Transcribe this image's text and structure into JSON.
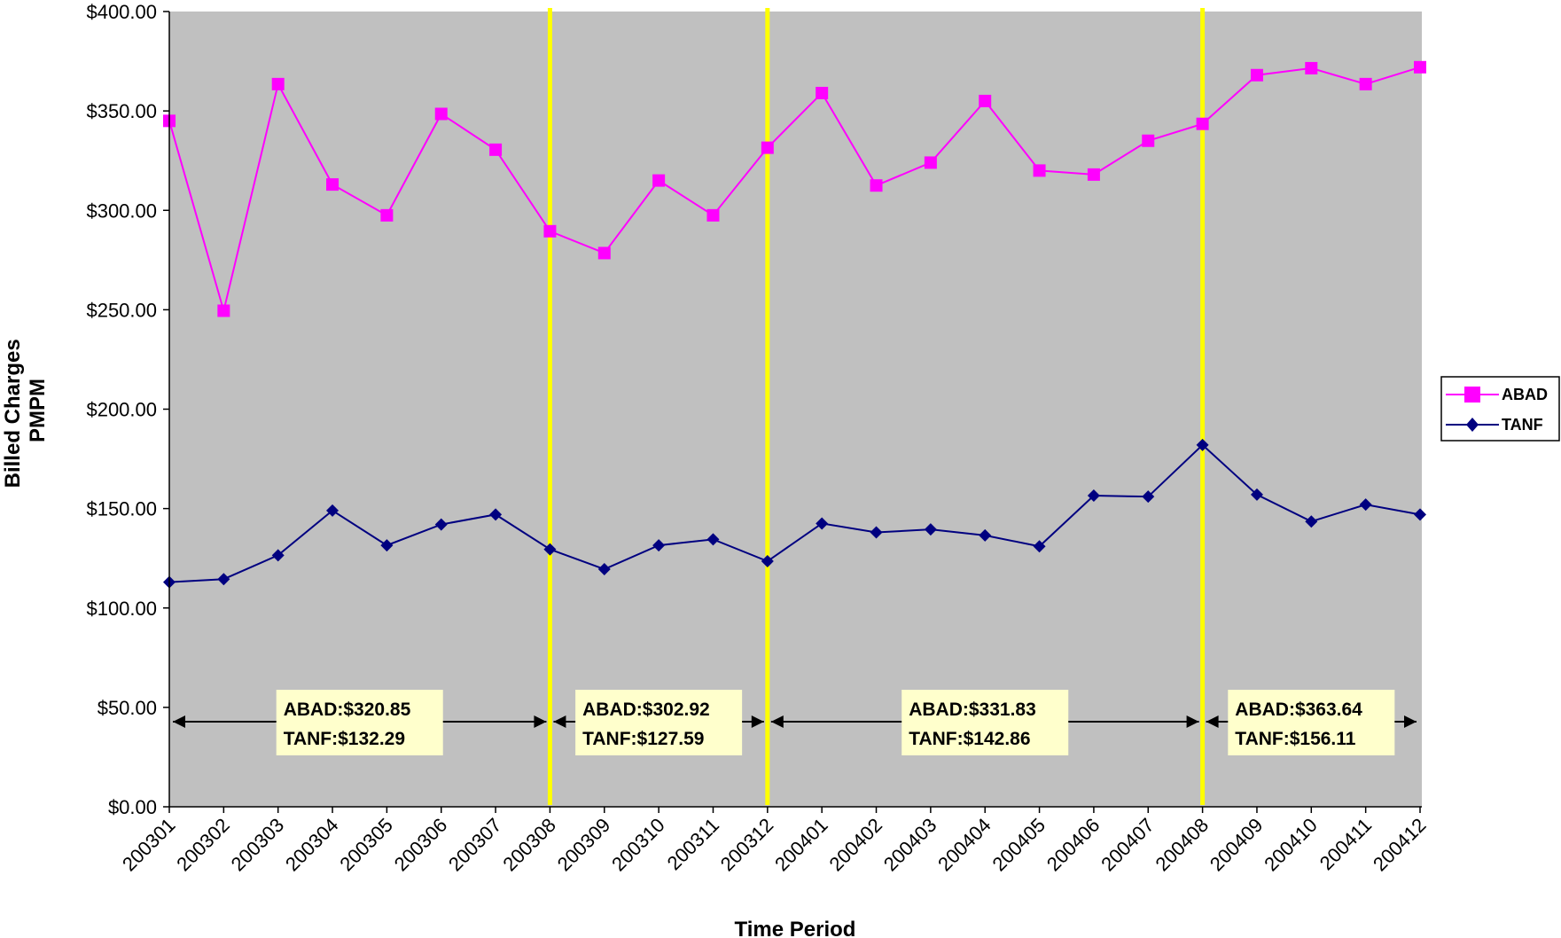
{
  "chart_data": {
    "type": "line",
    "title": "",
    "xlabel": "Time Period",
    "ylabel_lines": [
      "Billed Charges",
      "PMPM"
    ],
    "ylim": [
      0,
      400
    ],
    "y_ticks": [
      0,
      50,
      100,
      150,
      200,
      250,
      300,
      350,
      400
    ],
    "y_tick_labels": [
      "$0.00",
      "$50.00",
      "$100.00",
      "$150.00",
      "$200.00",
      "$250.00",
      "$300.00",
      "$350.00",
      "$400.00"
    ],
    "categories": [
      "200301",
      "200302",
      "200303",
      "200304",
      "200305",
      "200306",
      "200307",
      "200308",
      "200309",
      "200310",
      "200311",
      "200312",
      "200401",
      "200402",
      "200403",
      "200404",
      "200405",
      "200406",
      "200407",
      "200408",
      "200409",
      "200410",
      "200411",
      "200412"
    ],
    "series": [
      {
        "name": "ABAD",
        "color": "#FF00FF",
        "marker": "square",
        "values": [
          345,
          249.5,
          363.5,
          313,
          297.5,
          348.5,
          330.5,
          289.5,
          278.5,
          315,
          297.5,
          331.5,
          359,
          312.5,
          324,
          355,
          320,
          318,
          335,
          343.5,
          368,
          371.5,
          363.5,
          372
        ]
      },
      {
        "name": "TANF",
        "color": "#000080",
        "marker": "diamond",
        "values": [
          113,
          114.5,
          126.5,
          149,
          131.5,
          142,
          147,
          129.5,
          119.5,
          131.5,
          134.5,
          123.5,
          142.5,
          138,
          139.5,
          136.5,
          131,
          156.5,
          156,
          182,
          157,
          143.5,
          152,
          147
        ]
      }
    ],
    "grid": false,
    "legend_position": "right",
    "plot_background": "#C0C0C0",
    "divider_color": "#FFFF00",
    "divider_after_indices": [
      7,
      11,
      19
    ],
    "annotation_background": "#FFFFCC",
    "period_annotations": [
      {
        "start_index": 0,
        "end_index": 7,
        "line1": "ABAD:$320.85",
        "line2": "TANF:$132.29"
      },
      {
        "start_index": 7,
        "end_index": 11,
        "line1": "ABAD:$302.92",
        "line2": "TANF:$127.59"
      },
      {
        "start_index": 11,
        "end_index": 19,
        "line1": "ABAD:$331.83",
        "line2": "TANF:$142.86"
      },
      {
        "start_index": 19,
        "end_index": 23,
        "line1": "ABAD:$363.64",
        "line2": "TANF:$156.11"
      }
    ]
  }
}
